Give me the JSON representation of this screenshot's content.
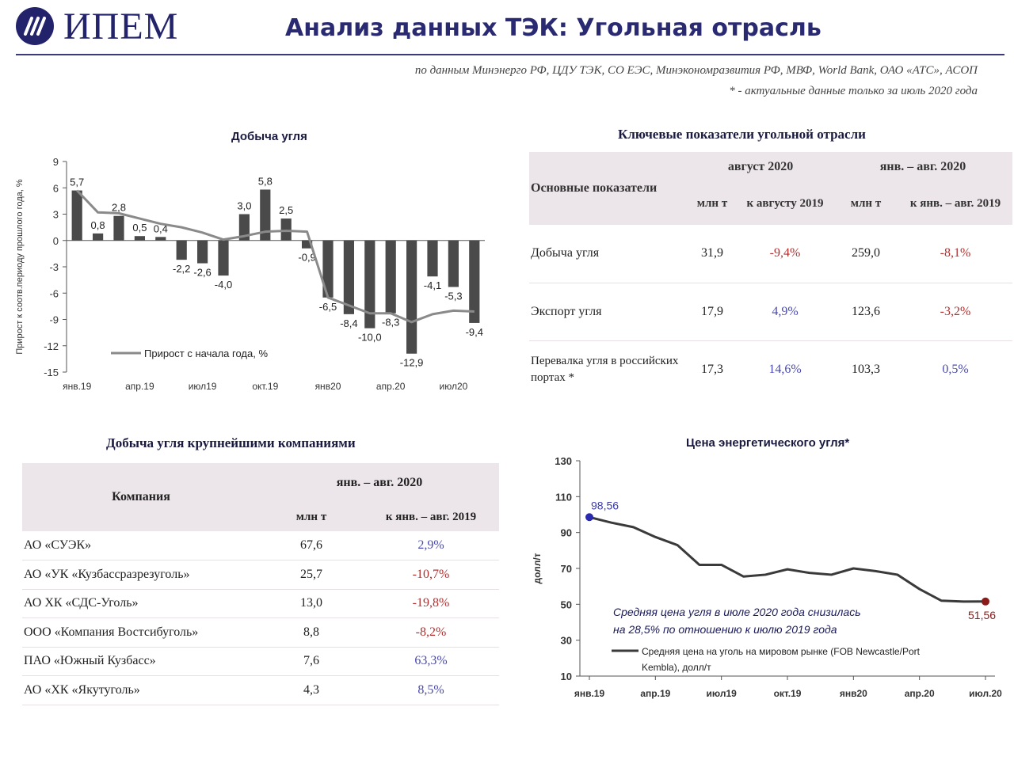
{
  "header": {
    "logo_text": "ИПЕМ",
    "title": "Анализ данных ТЭК: Угольная отрасль",
    "sources_line1": "по данным Минэнерго РФ, ЦДУ ТЭК, СО ЕЭС, Минэкономразвития РФ, МВФ, World Bank, ОАО «АТС», АСОП",
    "sources_line2": "* - актуальные данные только за июль 2020 года"
  },
  "colors": {
    "bars": "#4a4a4a",
    "line": "#8a8a8a",
    "accent": "#2a2a72",
    "negative": "#b03030",
    "positive": "#4a4ab0",
    "header_fill": "#ece5ea"
  },
  "chart_data": [
    {
      "type": "bar",
      "title": "Добыча угля",
      "ylabel": "Прирост к соотв.периоду прошлого года, %",
      "ylim": [
        -15,
        9
      ],
      "yticks": [
        9,
        6,
        3,
        0,
        -3,
        -6,
        -9,
        -12,
        -15
      ],
      "x_tick_labels": [
        "янв.19",
        "апр.19",
        "июл19",
        "окт.19",
        "янв20",
        "апр.20",
        "июл20"
      ],
      "categories": [
        "янв.19",
        "фев.19",
        "мар.19",
        "апр.19",
        "май.19",
        "июн.19",
        "июл.19",
        "авг.19",
        "сен.19",
        "окт.19",
        "ноя.19",
        "дек.19",
        "янв.20",
        "фев.20",
        "мар.20",
        "апр.20",
        "май.20",
        "июн.20",
        "июл.20",
        "авг.20"
      ],
      "series": [
        {
          "kind": "bar",
          "values": [
            5.7,
            0.8,
            2.8,
            0.5,
            0.4,
            -2.2,
            -2.6,
            -4.0,
            3.0,
            5.8,
            2.5,
            -0.9,
            -6.5,
            -8.4,
            -10.0,
            -8.3,
            -12.9,
            -4.1,
            -5.3,
            -9.4
          ],
          "labels": [
            "5,7",
            "0,8",
            "2,8",
            "0,5",
            "0,4",
            "-2,2",
            "-2,6",
            "-4,0",
            "3,0",
            "5,8",
            "2,5",
            "-0,9",
            "-6,5",
            "-8,4",
            "-10,0",
            "-8,3",
            "-12,9",
            "-4,1",
            "-5,3",
            "-9,4"
          ]
        },
        {
          "kind": "line",
          "name": "Прирост  с начала года, %",
          "values": [
            5.7,
            3.2,
            3.1,
            2.5,
            1.9,
            1.5,
            0.9,
            0.1,
            0.5,
            1.0,
            1.1,
            1.0,
            -6.5,
            -7.4,
            -8.3,
            -8.3,
            -9.3,
            -8.4,
            -8.0,
            -8.1
          ]
        }
      ],
      "legend": "bottom-left",
      "grid": false
    },
    {
      "type": "line",
      "title": "Цена энергетического угля*",
      "ylabel": "долл/т",
      "ylim": [
        10,
        130
      ],
      "yticks": [
        130,
        110,
        90,
        70,
        50,
        30,
        10
      ],
      "x_tick_labels": [
        "янв.19",
        "апр.19",
        "июл19",
        "окт.19",
        "янв20",
        "апр.20",
        "июл.20"
      ],
      "categories": [
        "янв.19",
        "фев.19",
        "мар.19",
        "апр.19",
        "май.19",
        "июн.19",
        "июл.19",
        "авг.19",
        "сен.19",
        "окт.19",
        "ноя.19",
        "дек.19",
        "янв.20",
        "фев.20",
        "мар.20",
        "апр.20",
        "май.20",
        "июн.20",
        "июл.20"
      ],
      "series": [
        {
          "name": "Средняя цена на уголь на мировом рынке (FOB Newcastle/Port Kembla), долл/т",
          "values": [
            98.56,
            95.5,
            93.0,
            87.5,
            83.0,
            72.0,
            72.0,
            65.5,
            66.5,
            69.5,
            67.5,
            66.5,
            70.0,
            68.5,
            66.5,
            58.5,
            52.0,
            51.5,
            51.56
          ]
        }
      ],
      "point_labels": {
        "first": "98,56",
        "last": "51,56"
      },
      "annotation": [
        "Средняя цена угля в июле 2020 года снизилась",
        "на 28,5% по отношению к июлю 2019 года"
      ],
      "legend": "bottom-right",
      "grid": false
    }
  ],
  "key_table": {
    "title": "Ключевые показатели угольной отрасли",
    "col_main": "Основные показатели",
    "group1": "август 2020",
    "group2": "янв. – авг. 2020",
    "sub_mt": "млн т",
    "sub_vs_aug": "к августу 2019",
    "sub_mt2": "млн т",
    "sub_vs_period": "к янв. – авг. 2019",
    "rows": [
      {
        "name": "Добыча угля",
        "aug_mt": "31,9",
        "aug_pct": "-9,4%",
        "aug_sign": "neg",
        "period_mt": "259,0",
        "period_pct": "-8,1%",
        "period_sign": "neg"
      },
      {
        "name": "Экспорт угля",
        "aug_mt": "17,9",
        "aug_pct": "4,9%",
        "aug_sign": "pos",
        "period_mt": "123,6",
        "period_pct": "-3,2%",
        "period_sign": "neg"
      },
      {
        "name": "Перевалка угля в российских портах *",
        "aug_mt": "17,3",
        "aug_pct": "14,6%",
        "aug_sign": "pos",
        "period_mt": "103,3",
        "period_pct": "0,5%",
        "period_sign": "pos"
      }
    ]
  },
  "company_table": {
    "title": "Добыча угля крупнейшими компаниями",
    "col_company": "Компания",
    "group": "янв. – авг. 2020",
    "sub_mt": "млн т",
    "sub_vs": "к янв. – авг. 2019",
    "rows": [
      {
        "name": "АО «СУЭК»",
        "mt": "67,6",
        "pct": "2,9%",
        "sign": "pos"
      },
      {
        "name": "АО «УК «Кузбассразрезуголь»",
        "mt": "25,7",
        "pct": "-10,7%",
        "sign": "neg"
      },
      {
        "name": "АО ХК «СДС-Уголь»",
        "mt": "13,0",
        "pct": "-19,8%",
        "sign": "neg"
      },
      {
        "name": "ООО «Компания Востсибуголь»",
        "mt": "8,8",
        "pct": "-8,2%",
        "sign": "neg"
      },
      {
        "name": "ПАО «Южный Кузбасс»",
        "mt": "7,6",
        "pct": "63,3%",
        "sign": "pos"
      },
      {
        "name": "АО «ХК «Якутуголь»",
        "mt": "4,3",
        "pct": "8,5%",
        "sign": "pos"
      }
    ]
  }
}
